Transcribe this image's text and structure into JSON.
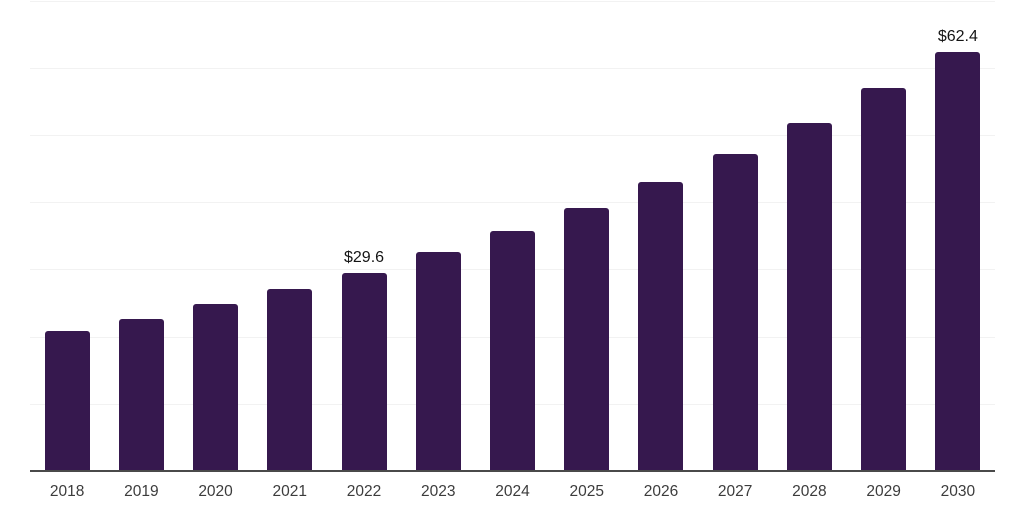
{
  "chart_data": {
    "type": "bar",
    "title": "",
    "xlabel": "",
    "ylabel": "",
    "categories": [
      "2018",
      "2019",
      "2020",
      "2021",
      "2022",
      "2023",
      "2024",
      "2025",
      "2026",
      "2027",
      "2028",
      "2029",
      "2030"
    ],
    "values": [
      20.9,
      22.7,
      24.9,
      27.1,
      29.6,
      32.7,
      35.8,
      39.2,
      43.1,
      47.3,
      51.9,
      57.0,
      62.4
    ],
    "data_labels": {
      "2022": "$29.6",
      "2030": "$62.4"
    },
    "ylim": [
      0,
      70
    ],
    "gridline_interval": 10,
    "grid": "horizontal",
    "y_axis_tick_labels_shown": false,
    "legend_position": "none",
    "colors": {
      "bar": "#36184E",
      "gridline": "#F2F2F2",
      "axis_line": "#4A4A4A",
      "tick_label": "#3C3C3C",
      "data_label": "#141414",
      "background": "#FFFFFF"
    }
  }
}
